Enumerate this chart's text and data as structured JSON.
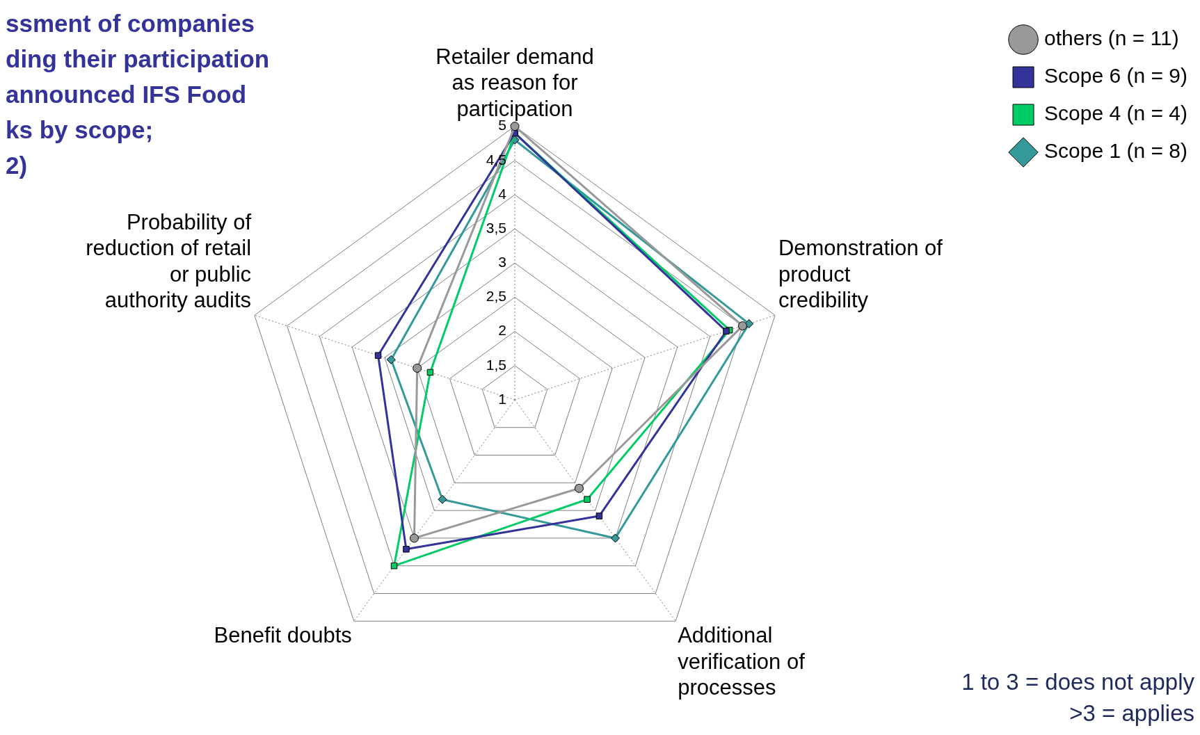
{
  "chart_data": {
    "type": "radar",
    "title": "ssment of companies\nding their participation\nannounced IFS Food\nks by scope;\n2)",
    "categories": [
      "Retailer demand\nas reason for\nparticipation",
      "Demonstration of\nproduct\ncredibility",
      "Additional\nverification of\nprocesses",
      "Benefit doubts",
      "Probability of\nreduction of retail\nor public\nauthority audits"
    ],
    "series": [
      {
        "name": "Scope 1 (n = 8)",
        "color": "#339999",
        "marker": "diamond",
        "values": [
          4.8,
          4.6,
          3.5,
          2.8,
          2.9
        ]
      },
      {
        "name": "Scope 4 (n = 4)",
        "color": "#00cc66",
        "marker": "square",
        "values": [
          4.9,
          4.3,
          2.8,
          4.0,
          2.3
        ]
      },
      {
        "name": "Scope 6 (n = 9)",
        "color": "#333399",
        "marker": "square",
        "values": [
          4.9,
          4.25,
          3.1,
          3.7,
          3.1
        ]
      },
      {
        "name": "others (n = 11)",
        "color": "#999999",
        "marker": "circle",
        "values": [
          5.0,
          4.5,
          2.6,
          3.5,
          2.5
        ]
      }
    ],
    "ylim": [
      1,
      5
    ],
    "yticks": [
      1,
      {
        "value": 1.5,
        "label": "1,5"
      },
      2,
      {
        "value": 2.5,
        "label": "2,5"
      },
      3,
      {
        "value": 3.5,
        "label": "3,5"
      },
      4,
      {
        "value": 4.5,
        "label": "4,5"
      },
      5
    ],
    "grid": true,
    "legend": "top right",
    "line_style": "solid",
    "annotations": [
      "1 to 3 = does not apply\n>3 = applies"
    ]
  }
}
